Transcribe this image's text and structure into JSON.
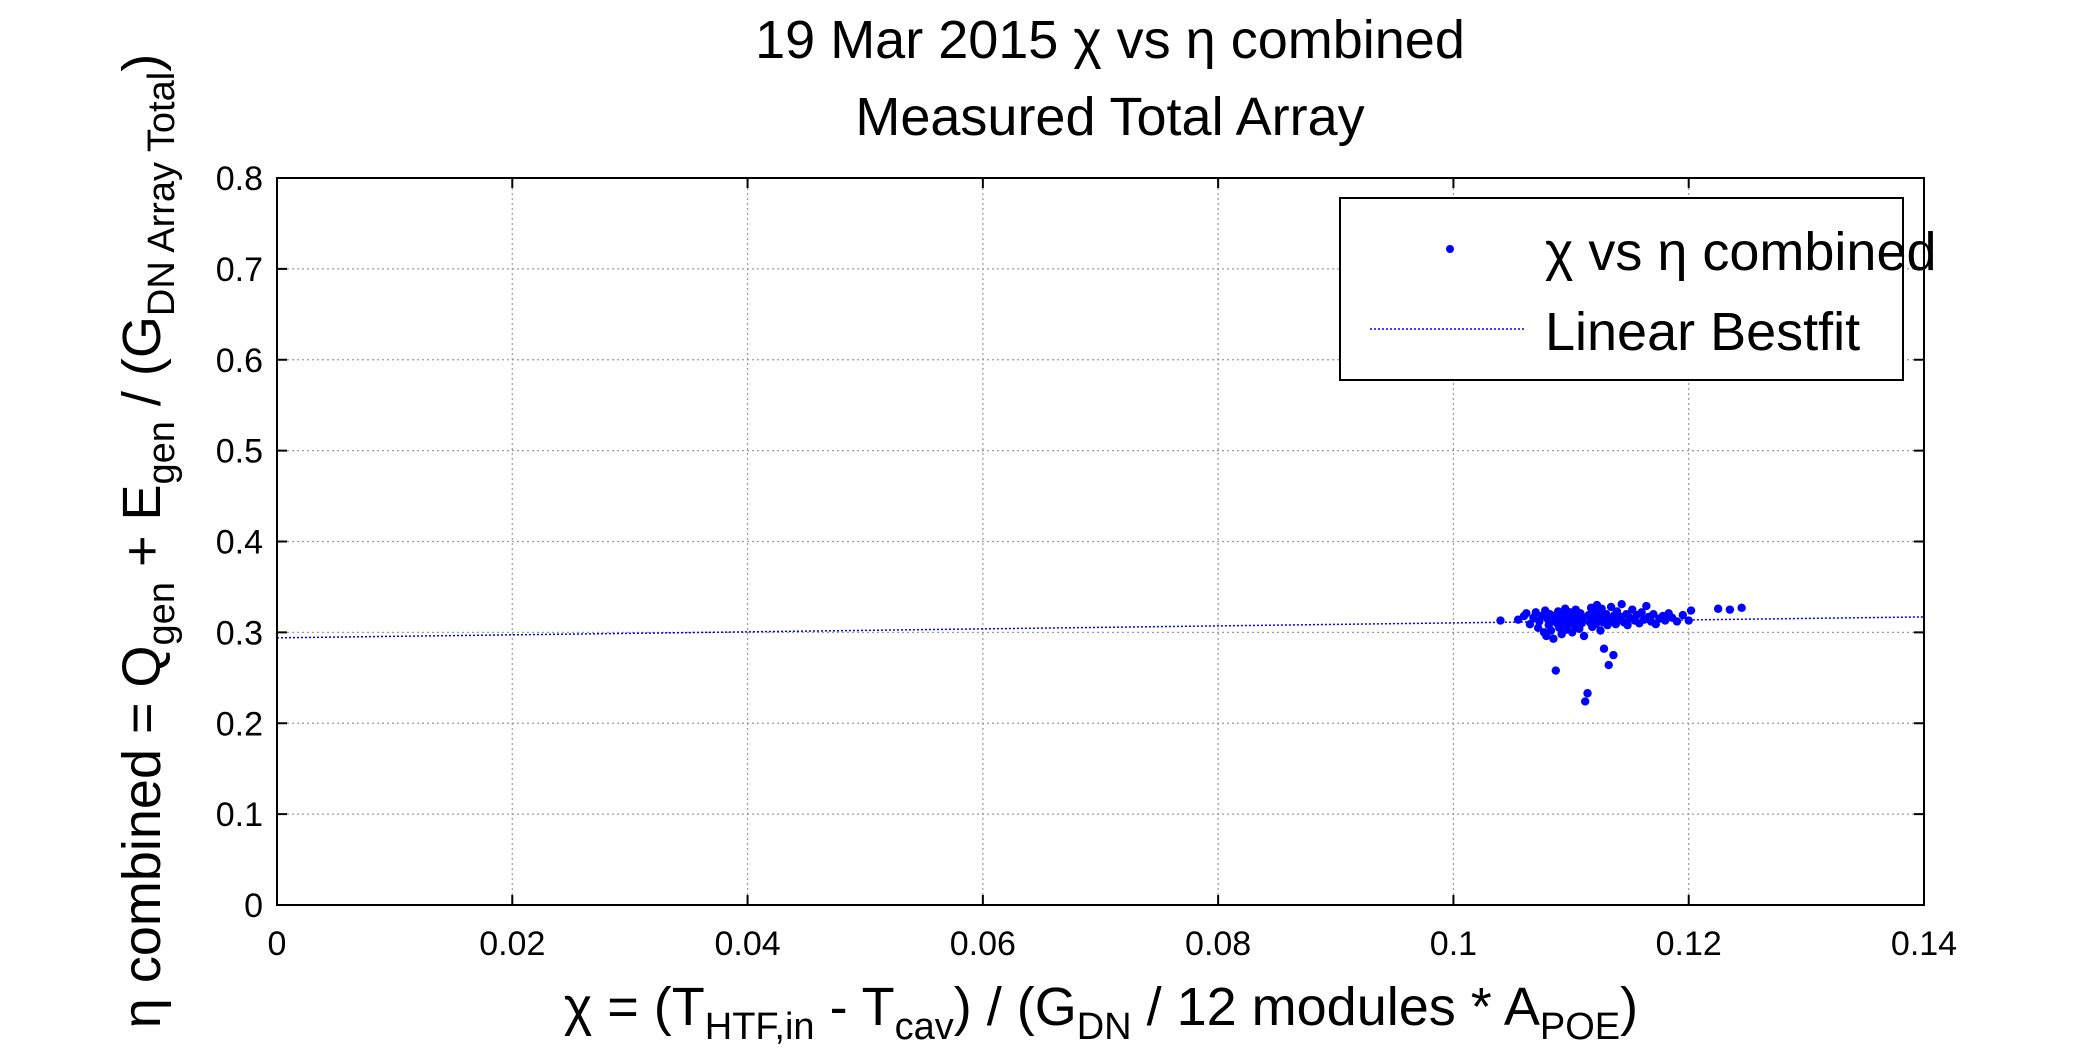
{
  "chart_data": {
    "type": "scatter",
    "title_line1": "19 Mar 2015 χ vs η combined",
    "title_line2": "Measured Total Array",
    "xlabel": {
      "prefix": "χ = (T",
      "sub1": "HTF,in",
      "mid1": " - T",
      "sub2": "cav",
      "mid2": ") / (G",
      "sub3": "DN",
      "mid3": " / 12 modules * A",
      "sub4": "POE",
      "suffix": ")"
    },
    "ylabel": {
      "prefix": "η combined = Q",
      "sub1": "gen",
      "mid1": " + E",
      "sub2": "gen",
      "mid2": " / (G",
      "sub3": "DN Array Total",
      "suffix": ")"
    },
    "xlim": [
      0,
      0.14
    ],
    "ylim": [
      0,
      0.8
    ],
    "xticks": [
      "0",
      "0.02",
      "0.04",
      "0.06",
      "0.08",
      "0.1",
      "0.12",
      "0.14"
    ],
    "yticks": [
      "0",
      "0.1",
      "0.2",
      "0.3",
      "0.4",
      "0.5",
      "0.6",
      "0.7",
      "0.8"
    ],
    "grid": true,
    "legend_position": "top-right",
    "series": [
      {
        "name": "χ vs η combined",
        "kind": "points",
        "color": "#0000ff",
        "points": [
          [
            0.104,
            0.313
          ],
          [
            0.1055,
            0.314
          ],
          [
            0.106,
            0.318
          ],
          [
            0.1062,
            0.321
          ],
          [
            0.1065,
            0.309
          ],
          [
            0.1068,
            0.316
          ],
          [
            0.107,
            0.322
          ],
          [
            0.1072,
            0.305
          ],
          [
            0.1073,
            0.312
          ],
          [
            0.1075,
            0.318
          ],
          [
            0.1077,
            0.3
          ],
          [
            0.1078,
            0.324
          ],
          [
            0.1079,
            0.296
          ],
          [
            0.108,
            0.315
          ],
          [
            0.1081,
            0.308
          ],
          [
            0.1082,
            0.32
          ],
          [
            0.1083,
            0.302
          ],
          [
            0.1084,
            0.313
          ],
          [
            0.1085,
            0.293
          ],
          [
            0.1086,
            0.318
          ],
          [
            0.1087,
            0.258
          ],
          [
            0.1088,
            0.31
          ],
          [
            0.1089,
            0.323
          ],
          [
            0.109,
            0.305
          ],
          [
            0.1091,
            0.315
          ],
          [
            0.1092,
            0.298
          ],
          [
            0.1093,
            0.32
          ],
          [
            0.1094,
            0.311
          ],
          [
            0.1095,
            0.326
          ],
          [
            0.1096,
            0.303
          ],
          [
            0.1097,
            0.317
          ],
          [
            0.1098,
            0.309
          ],
          [
            0.1099,
            0.322
          ],
          [
            0.11,
            0.314
          ],
          [
            0.1101,
            0.3
          ],
          [
            0.1102,
            0.319
          ],
          [
            0.1103,
            0.307
          ],
          [
            0.1104,
            0.325
          ],
          [
            0.1105,
            0.312
          ],
          [
            0.1106,
            0.318
          ],
          [
            0.1107,
            0.304
          ],
          [
            0.1108,
            0.321
          ],
          [
            0.1109,
            0.31
          ],
          [
            0.111,
            0.316
          ],
          [
            0.1111,
            0.296
          ],
          [
            0.1112,
            0.224
          ],
          [
            0.1114,
            0.233
          ],
          [
            0.1115,
            0.319
          ],
          [
            0.1116,
            0.311
          ],
          [
            0.1117,
            0.327
          ],
          [
            0.1118,
            0.306
          ],
          [
            0.1119,
            0.315
          ],
          [
            0.112,
            0.322
          ],
          [
            0.1121,
            0.309
          ],
          [
            0.1122,
            0.33
          ],
          [
            0.1123,
            0.313
          ],
          [
            0.1124,
            0.318
          ],
          [
            0.1125,
            0.302
          ],
          [
            0.1126,
            0.326
          ],
          [
            0.1127,
            0.311
          ],
          [
            0.1128,
            0.282
          ],
          [
            0.1129,
            0.317
          ],
          [
            0.113,
            0.32
          ],
          [
            0.1131,
            0.308
          ],
          [
            0.1132,
            0.264
          ],
          [
            0.1133,
            0.315
          ],
          [
            0.1134,
            0.328
          ],
          [
            0.1135,
            0.312
          ],
          [
            0.1136,
            0.275
          ],
          [
            0.1137,
            0.319
          ],
          [
            0.1138,
            0.309
          ],
          [
            0.1139,
            0.323
          ],
          [
            0.114,
            0.314
          ],
          [
            0.1142,
            0.317
          ],
          [
            0.1143,
            0.331
          ],
          [
            0.1145,
            0.311
          ],
          [
            0.1147,
            0.32
          ],
          [
            0.1148,
            0.308
          ],
          [
            0.115,
            0.316
          ],
          [
            0.1152,
            0.325
          ],
          [
            0.1154,
            0.313
          ],
          [
            0.1156,
            0.319
          ],
          [
            0.1158,
            0.31
          ],
          [
            0.116,
            0.322
          ],
          [
            0.1162,
            0.314
          ],
          [
            0.1164,
            0.329
          ],
          [
            0.1166,
            0.317
          ],
          [
            0.1168,
            0.312
          ],
          [
            0.117,
            0.32
          ],
          [
            0.1172,
            0.309
          ],
          [
            0.1175,
            0.315
          ],
          [
            0.1178,
            0.318
          ],
          [
            0.118,
            0.313
          ],
          [
            0.1183,
            0.321
          ],
          [
            0.1186,
            0.316
          ],
          [
            0.119,
            0.312
          ],
          [
            0.1195,
            0.319
          ],
          [
            0.12,
            0.313
          ],
          [
            0.1202,
            0.324
          ],
          [
            0.1225,
            0.326
          ],
          [
            0.1235,
            0.325
          ],
          [
            0.1245,
            0.327
          ]
        ]
      },
      {
        "name": "Linear Bestfit",
        "kind": "line",
        "color": "#0000ff",
        "x": [
          0,
          0.14
        ],
        "y": [
          0.294,
          0.317
        ]
      }
    ]
  }
}
